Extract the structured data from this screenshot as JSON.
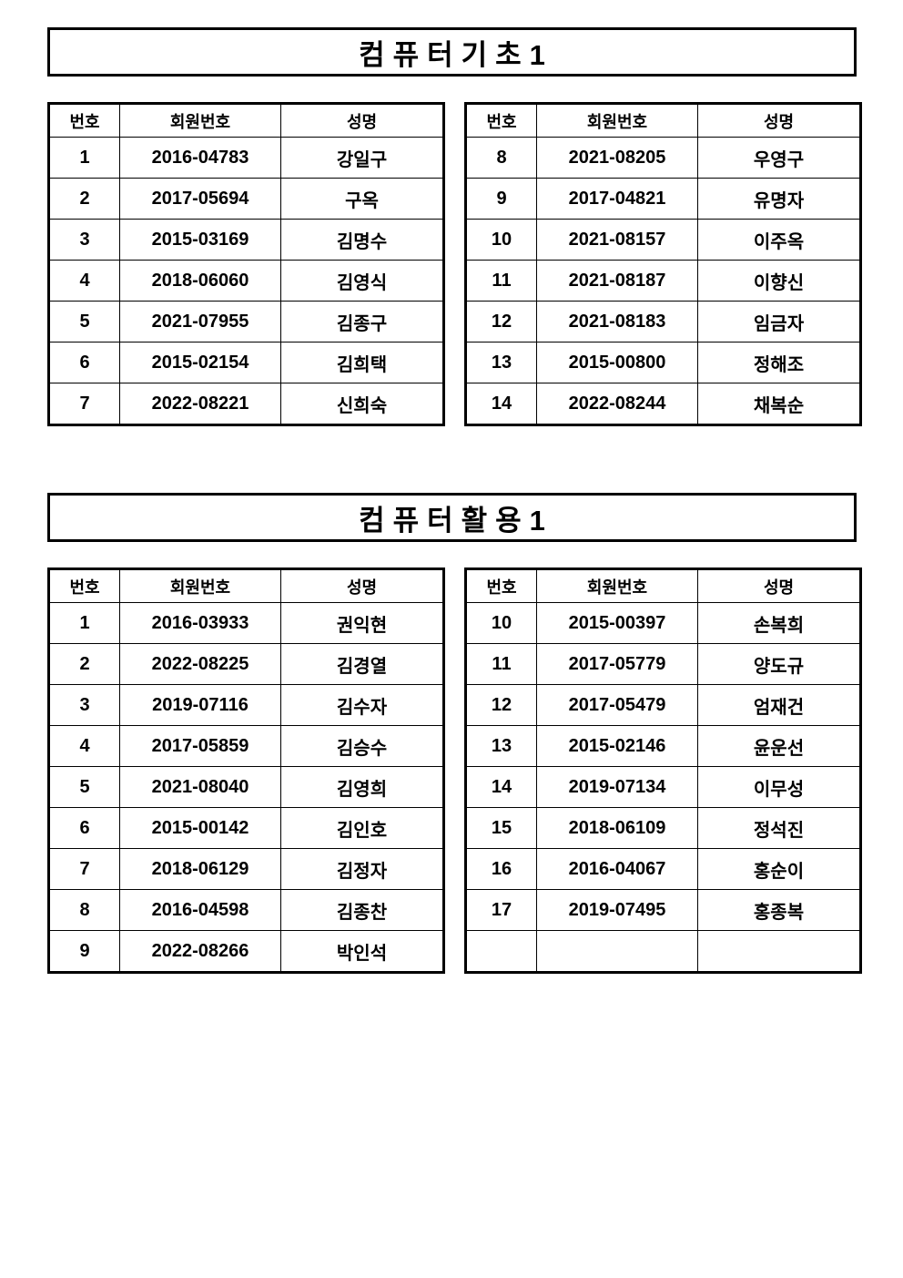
{
  "page": {
    "background": "#ffffff",
    "text_color": "#000000",
    "border_color": "#000000"
  },
  "sections": [
    {
      "title": "컴퓨터기초1",
      "tables": [
        {
          "headers": [
            "번호",
            "회원번호",
            "성명"
          ],
          "rows": [
            [
              "1",
              "2016-04783",
              "강일구"
            ],
            [
              "2",
              "2017-05694",
              "구옥"
            ],
            [
              "3",
              "2015-03169",
              "김명수"
            ],
            [
              "4",
              "2018-06060",
              "김영식"
            ],
            [
              "5",
              "2021-07955",
              "김종구"
            ],
            [
              "6",
              "2015-02154",
              "김희택"
            ],
            [
              "7",
              "2022-08221",
              "신희숙"
            ]
          ]
        },
        {
          "headers": [
            "번호",
            "회원번호",
            "성명"
          ],
          "rows": [
            [
              "8",
              "2021-08205",
              "우영구"
            ],
            [
              "9",
              "2017-04821",
              "유명자"
            ],
            [
              "10",
              "2021-08157",
              "이주옥"
            ],
            [
              "11",
              "2021-08187",
              "이향신"
            ],
            [
              "12",
              "2021-08183",
              "임금자"
            ],
            [
              "13",
              "2015-00800",
              "정해조"
            ],
            [
              "14",
              "2022-08244",
              "채복순"
            ]
          ]
        }
      ]
    },
    {
      "title": "컴퓨터활용1",
      "tables": [
        {
          "headers": [
            "번호",
            "회원번호",
            "성명"
          ],
          "rows": [
            [
              "1",
              "2016-03933",
              "권익현"
            ],
            [
              "2",
              "2022-08225",
              "김경열"
            ],
            [
              "3",
              "2019-07116",
              "김수자"
            ],
            [
              "4",
              "2017-05859",
              "김승수"
            ],
            [
              "5",
              "2021-08040",
              "김영희"
            ],
            [
              "6",
              "2015-00142",
              "김인호"
            ],
            [
              "7",
              "2018-06129",
              "김정자"
            ],
            [
              "8",
              "2016-04598",
              "김종찬"
            ],
            [
              "9",
              "2022-08266",
              "박인석"
            ]
          ]
        },
        {
          "headers": [
            "번호",
            "회원번호",
            "성명"
          ],
          "rows": [
            [
              "10",
              "2015-00397",
              "손복희"
            ],
            [
              "11",
              "2017-05779",
              "양도규"
            ],
            [
              "12",
              "2017-05479",
              "엄재건"
            ],
            [
              "13",
              "2015-02146",
              "윤운선"
            ],
            [
              "14",
              "2019-07134",
              "이무성"
            ],
            [
              "15",
              "2018-06109",
              "정석진"
            ],
            [
              "16",
              "2016-04067",
              "홍순이"
            ],
            [
              "17",
              "2019-07495",
              "홍종복"
            ],
            [
              "",
              "",
              ""
            ]
          ]
        }
      ]
    }
  ]
}
